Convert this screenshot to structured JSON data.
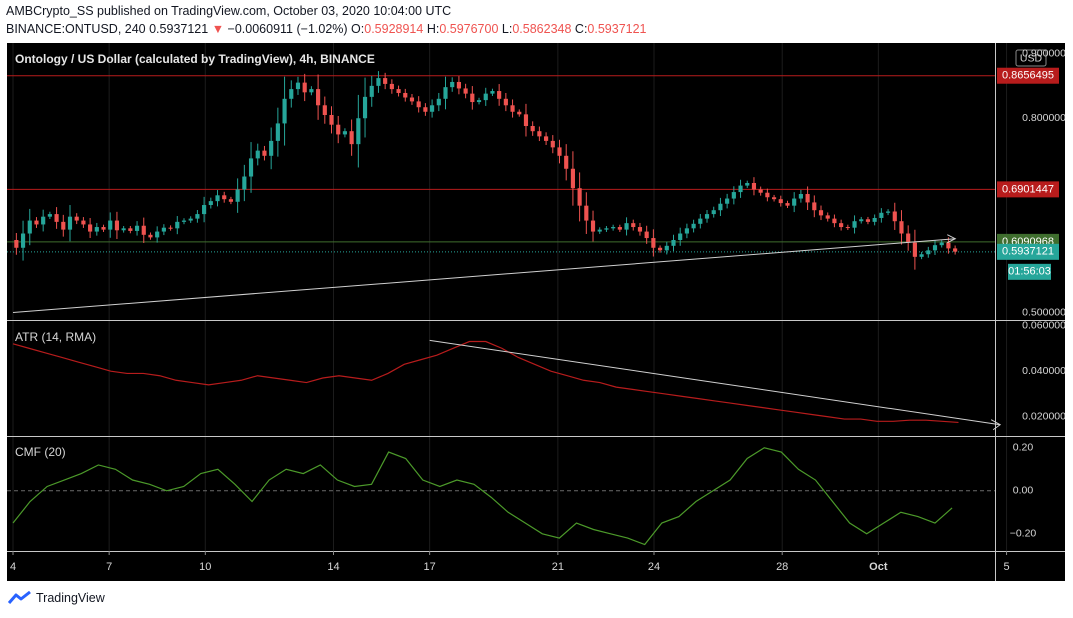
{
  "header": {
    "line1": "AMBCrypto_SS published on TradingView.com, October 03, 2020 10:04:00 UTC",
    "symbol_prefix": "BINANCE:ONTUSD, 240",
    "last": "0.5937121",
    "change_arrow": "▼",
    "change": "−0.0060911 (−1.02%)",
    "o_label": "O:",
    "o_val": "0.5928914",
    "h_label": "H:",
    "h_val": "0.5976700",
    "l_label": "L:",
    "l_val": "0.5862348",
    "c_label": "C:",
    "c_val": "0.5937121"
  },
  "footer": {
    "brand": "TradingView"
  },
  "colors": {
    "up": "#26a69a",
    "down": "#ef5350",
    "resistance": "#b71c1c",
    "support": "#3f6e2e",
    "atr": "#b71c1c",
    "cmf": "#4c9a2a",
    "trend": "#d0d0d0",
    "grid": "#1c1c1c"
  },
  "chart_data": [
    {
      "type": "candlestick",
      "title": "Ontology / US Dollar (calculated by TradingView), 4h, BINANCE",
      "currency": "USD",
      "ylim": [
        0.49,
        0.91
      ],
      "yticks": [
        "0.9000000",
        "0.8000000",
        "0.5000000"
      ],
      "xticks": [
        "4",
        "7",
        "10",
        "14",
        "17",
        "21",
        "24",
        "28",
        "Oct",
        "5"
      ],
      "xtick_day_index": [
        0,
        3,
        6,
        10,
        13,
        17,
        20,
        24,
        27,
        31
      ],
      "horizontal_levels": [
        {
          "label": "0.8656495",
          "value": 0.8656495,
          "color": "resistance"
        },
        {
          "label": "0.6901447",
          "value": 0.6901447,
          "color": "resistance"
        },
        {
          "label": "0.6090968",
          "value": 0.6090968,
          "color": "support"
        }
      ],
      "last_price": {
        "label": "0.5937121",
        "value": 0.5937121,
        "countdown": "01:56:03"
      },
      "trendline": {
        "from": [
          0,
          0.5
        ],
        "to": [
          29.4,
          0.614
        ]
      },
      "closes": [
        0.6,
        0.622,
        0.642,
        0.636,
        0.648,
        0.652,
        0.64,
        0.628,
        0.648,
        0.642,
        0.636,
        0.625,
        0.632,
        0.628,
        0.642,
        0.627,
        0.63,
        0.626,
        0.634,
        0.62,
        0.616,
        0.625,
        0.631,
        0.63,
        0.64,
        0.642,
        0.645,
        0.652,
        0.666,
        0.672,
        0.681,
        0.675,
        0.671,
        0.69,
        0.71,
        0.738,
        0.75,
        0.742,
        0.765,
        0.792,
        0.83,
        0.845,
        0.855,
        0.84,
        0.845,
        0.82,
        0.805,
        0.79,
        0.775,
        0.78,
        0.76,
        0.8,
        0.833,
        0.85,
        0.862,
        0.853,
        0.845,
        0.839,
        0.832,
        0.826,
        0.817,
        0.81,
        0.82,
        0.83,
        0.848,
        0.856,
        0.846,
        0.838,
        0.825,
        0.828,
        0.838,
        0.842,
        0.83,
        0.82,
        0.81,
        0.806,
        0.788,
        0.78,
        0.772,
        0.765,
        0.755,
        0.742,
        0.722,
        0.692,
        0.665,
        0.642,
        0.625,
        0.628,
        0.63,
        0.632,
        0.628,
        0.638,
        0.632,
        0.625,
        0.615,
        0.6,
        0.596,
        0.603,
        0.612,
        0.622,
        0.63,
        0.637,
        0.645,
        0.652,
        0.658,
        0.668,
        0.676,
        0.686,
        0.696,
        0.7,
        0.69,
        0.685,
        0.678,
        0.675,
        0.669,
        0.665,
        0.676,
        0.683,
        0.67,
        0.658,
        0.65,
        0.645,
        0.638,
        0.632,
        0.631,
        0.641,
        0.644,
        0.64,
        0.646,
        0.654,
        0.656,
        0.641,
        0.622,
        0.608,
        0.586,
        0.59,
        0.596,
        0.604,
        0.608,
        0.599,
        0.594
      ],
      "note": "closes are approximate 4h closes from Oct 4 through Oct 3 06:00 UTC"
    },
    {
      "type": "line",
      "title": "ATR (14, RMA)",
      "ylim": [
        0.012,
        0.062
      ],
      "yticks": [
        "0.0600000",
        "0.0400000",
        "0.0200000"
      ],
      "trendline": {
        "from": [
          13.0,
          0.0535
        ],
        "to": [
          30.8,
          0.0165
        ]
      },
      "values": [
        0.052,
        0.05,
        0.048,
        0.046,
        0.044,
        0.042,
        0.04,
        0.039,
        0.039,
        0.038,
        0.036,
        0.035,
        0.034,
        0.035,
        0.036,
        0.038,
        0.037,
        0.036,
        0.035,
        0.037,
        0.038,
        0.037,
        0.036,
        0.039,
        0.043,
        0.045,
        0.047,
        0.05,
        0.053,
        0.053,
        0.05,
        0.046,
        0.043,
        0.04,
        0.038,
        0.036,
        0.035,
        0.033,
        0.032,
        0.031,
        0.03,
        0.029,
        0.028,
        0.027,
        0.026,
        0.025,
        0.024,
        0.023,
        0.022,
        0.021,
        0.02,
        0.019,
        0.019,
        0.018,
        0.018,
        0.0185,
        0.0185,
        0.018,
        0.0175
      ],
      "note": "values sampled about every 0.5 day"
    },
    {
      "type": "line",
      "title": "CMF (20)",
      "ylim": [
        -0.28,
        0.25
      ],
      "yticks": [
        "0.20",
        "0.00",
        "−0.20"
      ],
      "zero_line": true,
      "values": [
        -0.15,
        -0.05,
        0.02,
        0.05,
        0.08,
        0.12,
        0.1,
        0.05,
        0.03,
        0.0,
        0.02,
        0.08,
        0.1,
        0.03,
        -0.05,
        0.05,
        0.1,
        0.08,
        0.12,
        0.05,
        0.02,
        0.03,
        0.18,
        0.15,
        0.05,
        0.02,
        0.05,
        0.03,
        -0.03,
        -0.1,
        -0.15,
        -0.2,
        -0.22,
        -0.15,
        -0.18,
        -0.2,
        -0.22,
        -0.25,
        -0.15,
        -0.12,
        -0.05,
        0.0,
        0.05,
        0.15,
        0.2,
        0.18,
        0.1,
        0.05,
        -0.05,
        -0.15,
        -0.2,
        -0.15,
        -0.1,
        -0.12,
        -0.15,
        -0.08
      ],
      "note": "values sampled about every 0.5 day"
    }
  ]
}
